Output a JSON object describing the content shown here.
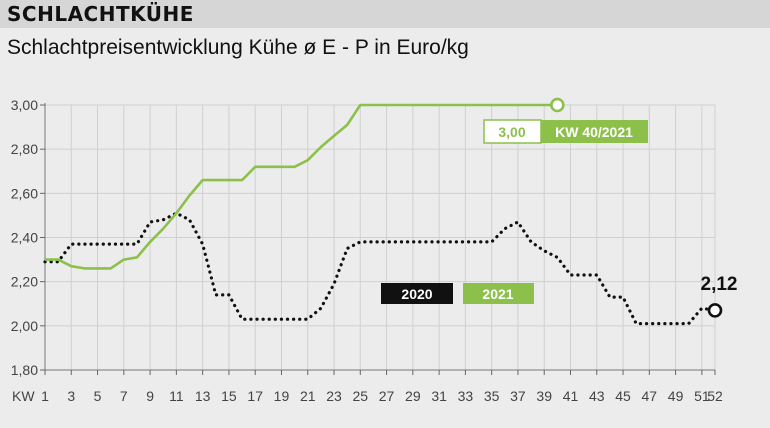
{
  "header": {
    "title": "SCHLACHTKÜHE"
  },
  "subtitle": "Schlachtpreisentwicklung Kühe ø E - P in Euro/kg",
  "chart_data": {
    "type": "line",
    "xlabel": "KW",
    "ylabel": "",
    "xlim": [
      1,
      52
    ],
    "ylim": [
      1.8,
      3.0
    ],
    "y_ticks": [
      "1,80",
      "2,00",
      "2,20",
      "2,40",
      "2,60",
      "2,80",
      "3,00"
    ],
    "y_tick_values": [
      1.8,
      2.0,
      2.2,
      2.4,
      2.6,
      2.8,
      3.0
    ],
    "x_ticks": [
      "1",
      "3",
      "5",
      "7",
      "9",
      "11",
      "13",
      "15",
      "17",
      "19",
      "21",
      "23",
      "25",
      "27",
      "29",
      "31",
      "33",
      "35",
      "37",
      "39",
      "41",
      "43",
      "45",
      "47",
      "49",
      "51",
      "52"
    ],
    "x_tick_values": [
      1,
      3,
      5,
      7,
      9,
      11,
      13,
      15,
      17,
      19,
      21,
      23,
      25,
      27,
      29,
      31,
      33,
      35,
      37,
      39,
      41,
      43,
      45,
      47,
      49,
      51,
      52
    ],
    "grid": "vertical",
    "series": [
      {
        "name": "2020",
        "color": "#111111",
        "style": "dotted",
        "x": [
          1,
          2,
          3,
          4,
          5,
          6,
          7,
          8,
          9,
          10,
          11,
          12,
          13,
          14,
          15,
          16,
          17,
          18,
          19,
          20,
          21,
          22,
          23,
          24,
          25,
          26,
          27,
          28,
          29,
          30,
          31,
          32,
          33,
          34,
          35,
          36,
          37,
          38,
          39,
          40,
          41,
          42,
          43,
          44,
          45,
          46,
          47,
          48,
          49,
          50,
          51,
          52
        ],
        "y": [
          2.29,
          2.29,
          2.37,
          2.37,
          2.37,
          2.37,
          2.37,
          2.37,
          2.47,
          2.48,
          2.51,
          2.48,
          2.37,
          2.14,
          2.14,
          2.03,
          2.03,
          2.03,
          2.03,
          2.03,
          2.03,
          2.08,
          2.19,
          2.35,
          2.38,
          2.38,
          2.38,
          2.38,
          2.38,
          2.38,
          2.38,
          2.38,
          2.38,
          2.38,
          2.38,
          2.44,
          2.47,
          2.38,
          2.34,
          2.31,
          2.23,
          2.23,
          2.23,
          2.13,
          2.13,
          2.01,
          2.01,
          2.01,
          2.01,
          2.01,
          2.08,
          2.07
        ]
      },
      {
        "name": "2021",
        "color": "#8cc04b",
        "style": "solid",
        "x": [
          1,
          2,
          3,
          4,
          5,
          6,
          7,
          8,
          9,
          10,
          11,
          12,
          13,
          14,
          15,
          16,
          17,
          18,
          19,
          20,
          21,
          22,
          23,
          24,
          25,
          26,
          27,
          28,
          29,
          30,
          31,
          32,
          33,
          34,
          35,
          36,
          37,
          38,
          39,
          40
        ],
        "y": [
          2.3,
          2.3,
          2.27,
          2.26,
          2.26,
          2.26,
          2.3,
          2.31,
          2.38,
          2.44,
          2.51,
          2.59,
          2.66,
          2.66,
          2.66,
          2.66,
          2.72,
          2.72,
          2.72,
          2.72,
          2.75,
          2.81,
          2.86,
          2.91,
          3.0,
          3.0,
          3.0,
          3.0,
          3.0,
          3.0,
          3.0,
          3.0,
          3.0,
          3.0,
          3.0,
          3.0,
          3.0,
          3.0,
          3.0,
          3.0
        ]
      }
    ],
    "annotations": [
      {
        "series": "2021",
        "value": "3,00",
        "label": "KW 40/2021"
      },
      {
        "series": "2020",
        "value": "2,12"
      }
    ]
  },
  "colors": {
    "background": "#ececec",
    "header_band": "#d6d6d6",
    "green": "#8cc04b",
    "black": "#111111",
    "grid": "#c8c8c8"
  }
}
